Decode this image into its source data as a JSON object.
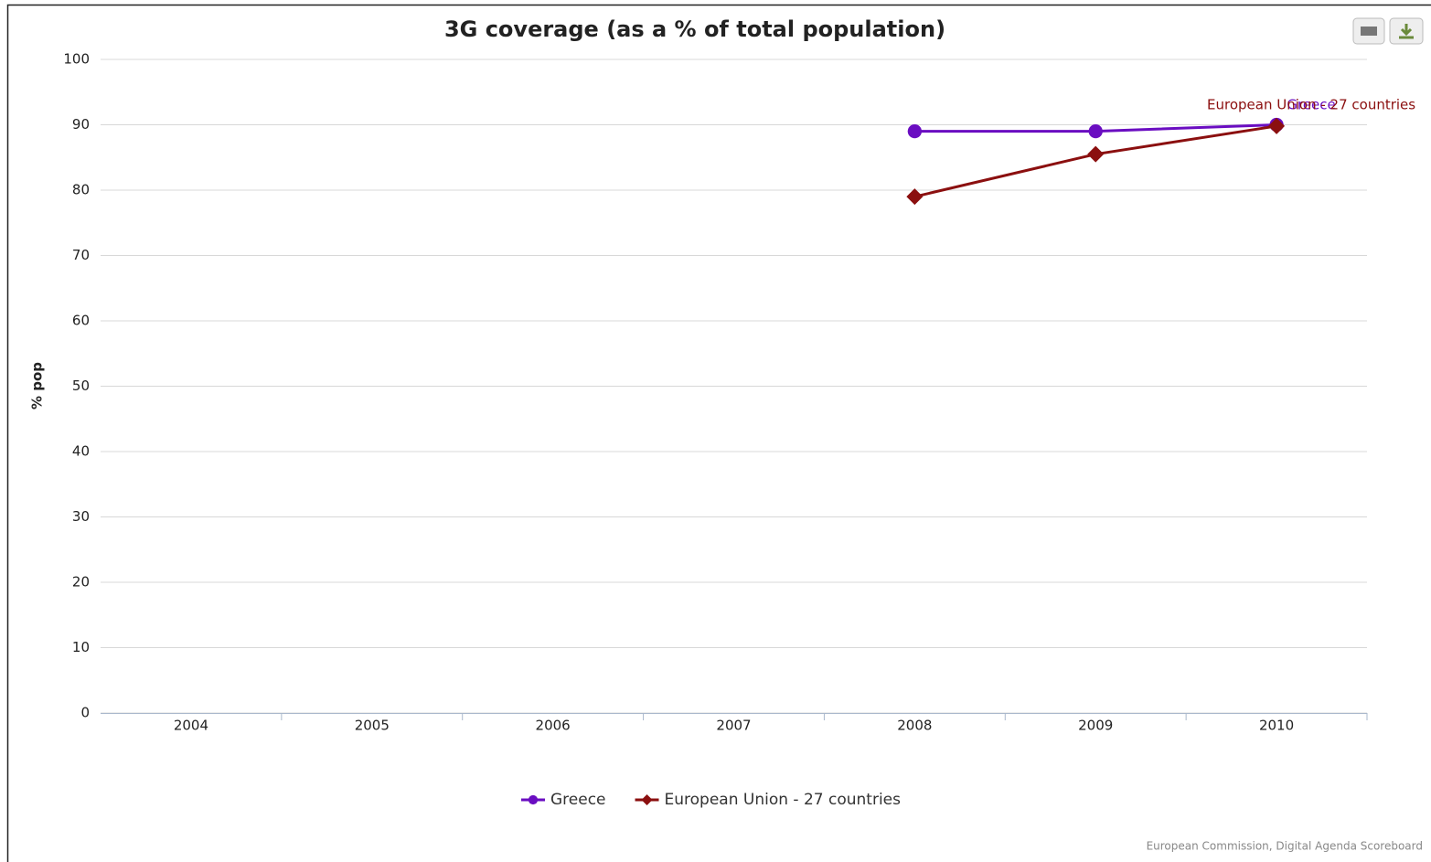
{
  "chart_data": {
    "type": "line",
    "title": "3G coverage (as a % of total population)",
    "y_label": "% pop",
    "categories": [
      "2004",
      "2005",
      "2006",
      "2007",
      "2008",
      "2009",
      "2010"
    ],
    "series": [
      {
        "name": "Greece",
        "color": "#6a0dc1",
        "marker": "circle",
        "values": [
          null,
          null,
          null,
          null,
          89,
          89,
          90
        ]
      },
      {
        "name": "European Union - 27 countries",
        "color": "#8b0f0f",
        "marker": "diamond",
        "values": [
          null,
          null,
          null,
          null,
          79,
          85.5,
          89.8
        ]
      }
    ],
    "ylim": [
      0,
      100
    ],
    "yticks": [
      0,
      10,
      20,
      30,
      40,
      50,
      60,
      70,
      80,
      90,
      100
    ],
    "grid": true,
    "legend": "bottom",
    "credits": "European Commission, Digital Agenda Scoreboard"
  }
}
